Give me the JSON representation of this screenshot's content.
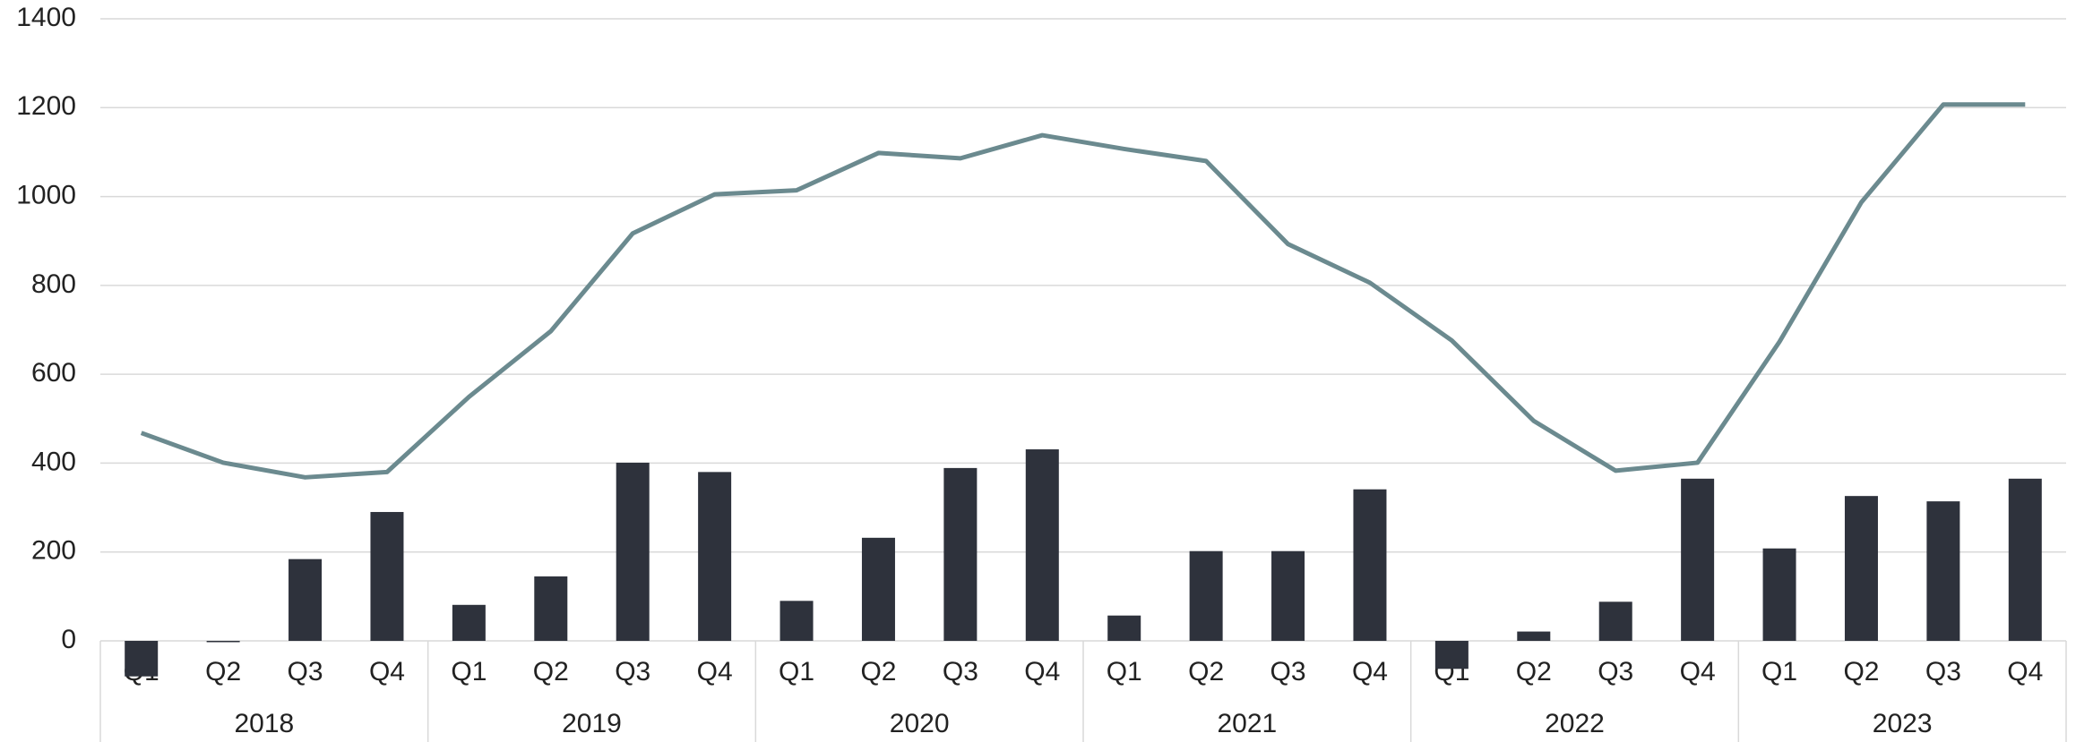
{
  "chart_data": {
    "type": "bar",
    "categories": [
      "Q1",
      "Q2",
      "Q3",
      "Q4",
      "Q1",
      "Q2",
      "Q3",
      "Q4",
      "Q1",
      "Q2",
      "Q3",
      "Q4",
      "Q1",
      "Q2",
      "Q3",
      "Q4",
      "Q1",
      "Q2",
      "Q3",
      "Q4",
      "Q1",
      "Q2",
      "Q3",
      "Q4"
    ],
    "groups": [
      "2018",
      "2019",
      "2020",
      "2021",
      "2022",
      "2023"
    ],
    "series": [
      {
        "type": "bar",
        "color": "#2e323c",
        "values": [
          -80,
          -3,
          184,
          290,
          81,
          145,
          401,
          380,
          90,
          232,
          389,
          431,
          57,
          202,
          202,
          341,
          -63,
          21,
          88,
          365,
          208,
          326,
          314,
          365
        ]
      },
      {
        "type": "line",
        "color": "#6b8a8f",
        "values": [
          468,
          401,
          368,
          380,
          549,
          697,
          917,
          1005,
          1014,
          1098,
          1086,
          1138,
          1107,
          1080,
          893,
          806,
          676,
          495,
          383,
          401,
          673,
          987,
          1207,
          1207
        ]
      }
    ],
    "ylim": [
      0,
      1400
    ],
    "yticks": [
      0,
      200,
      400,
      600,
      800,
      1000,
      1200,
      1400
    ],
    "grid": true
  }
}
